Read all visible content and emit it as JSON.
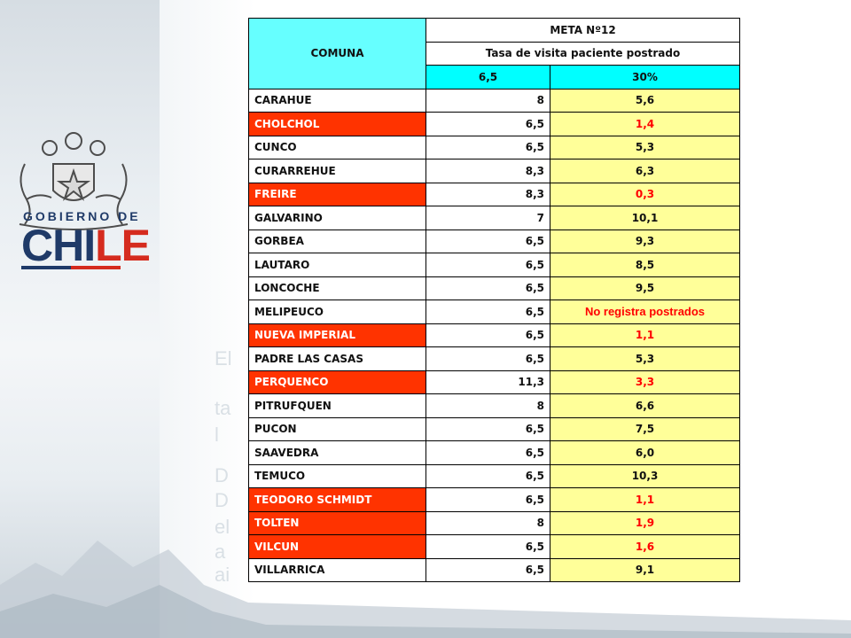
{
  "logo": {
    "top_text": "GOBIERNO DE",
    "word_part1": "CHI",
    "word_part2": "LE"
  },
  "background_ghost_text": [
    "El",
    "ta",
    "l",
    "D",
    "D",
    "el",
    "a",
    "ai"
  ],
  "table": {
    "header": {
      "comuna": "COMUNA",
      "meta": "META Nº12",
      "indicator": "Tasa de visita paciente postrado",
      "meta_value": "6,5",
      "meta_percent": "30%"
    },
    "rows": [
      {
        "comuna": "CARAHUE",
        "meta": "8",
        "tasa": "5,6",
        "red": false
      },
      {
        "comuna": "CHOLCHOL",
        "meta": "6,5",
        "tasa": "1,4",
        "red": true
      },
      {
        "comuna": "CUNCO",
        "meta": "6,5",
        "tasa": "5,3",
        "red": false
      },
      {
        "comuna": "CURARREHUE",
        "meta": "8,3",
        "tasa": "6,3",
        "red": false
      },
      {
        "comuna": "FREIRE",
        "meta": "8,3",
        "tasa": "0,3",
        "red": true
      },
      {
        "comuna": "GALVARINO",
        "meta": "7",
        "tasa": "10,1",
        "red": false
      },
      {
        "comuna": "GORBEA",
        "meta": "6,5",
        "tasa": "9,3",
        "red": false
      },
      {
        "comuna": "LAUTARO",
        "meta": "6,5",
        "tasa": "8,5",
        "red": false
      },
      {
        "comuna": "LONCOCHE",
        "meta": "6,5",
        "tasa": "9,5",
        "red": false
      },
      {
        "comuna": "MELIPEUCO",
        "meta": "6,5",
        "tasa": "No registra postrados",
        "red": false,
        "no_record": true
      },
      {
        "comuna": "NUEVA IMPERIAL",
        "meta": "6,5",
        "tasa": "1,1",
        "red": true
      },
      {
        "comuna": "PADRE LAS CASAS",
        "meta": "6,5",
        "tasa": "5,3",
        "red": false
      },
      {
        "comuna": "PERQUENCO",
        "meta": "11,3",
        "tasa": "3,3",
        "red": true
      },
      {
        "comuna": "PITRUFQUEN",
        "meta": "8",
        "tasa": "6,6",
        "red": false
      },
      {
        "comuna": "PUCON",
        "meta": "6,5",
        "tasa": "7,5",
        "red": false
      },
      {
        "comuna": "SAAVEDRA",
        "meta": "6,5",
        "tasa": "6,0",
        "red": false
      },
      {
        "comuna": "TEMUCO",
        "meta": "6,5",
        "tasa": "10,3",
        "red": false
      },
      {
        "comuna": "TEODORO SCHMIDT",
        "meta": "6,5",
        "tasa": "1,1",
        "red": true
      },
      {
        "comuna": "TOLTEN",
        "meta": "8",
        "tasa": "1,9",
        "red": true
      },
      {
        "comuna": "VILCUN",
        "meta": "6,5",
        "tasa": "1,6",
        "red": true
      },
      {
        "comuna": "VILLARRICA",
        "meta": "6,5",
        "tasa": "9,1",
        "red": false
      }
    ]
  },
  "colors": {
    "red_cell": "#ff3300",
    "red_text": "#ff0000",
    "yellow_cell": "#ffff99",
    "cyan_cell": "#00ffff",
    "header_cyan": "#66ffff",
    "logo_blue": "#1f3a68",
    "logo_red": "#d52b1e"
  }
}
